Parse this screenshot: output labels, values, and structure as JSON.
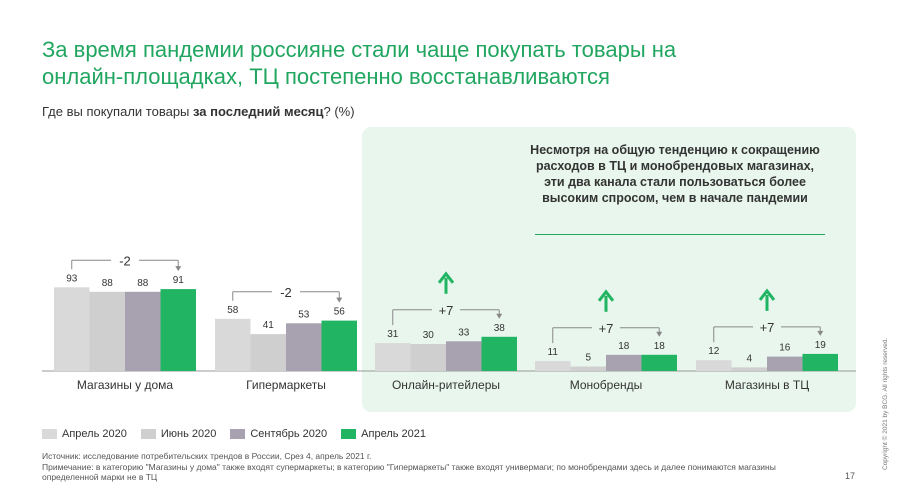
{
  "title": "За время пандемии россияне стали чаще покупать товары на онлайн-площадках, ТЦ постепенно восстанавливаются",
  "subtitle": {
    "prefix": "Где вы покупали товары ",
    "bold": "за последний месяц",
    "suffix": "? (%)"
  },
  "callout": "Несмотря на общую тенденцию к сокращению расходов в ТЦ и монобрендовых магазинах, эти два канала стали пользоваться более высоким спросом, чем в начале пандемии",
  "chart_data": {
    "type": "bar",
    "title": "Где вы покупали товары за последний месяц? (%)",
    "categories": [
      "Магазины у дома",
      "Гипермаркеты",
      "Онлайн-ритейлеры",
      "Монобренды",
      "Магазины в ТЦ"
    ],
    "series": [
      {
        "name": "Апрель 2020",
        "color": "#d9d9d9",
        "values": [
          93,
          58,
          31,
          11,
          12
        ]
      },
      {
        "name": "Июнь 2020",
        "color": "#cfcfcf",
        "values": [
          88,
          41,
          30,
          5,
          4
        ]
      },
      {
        "name": "Сентябрь 2020",
        "color": "#a8a2b0",
        "values": [
          88,
          53,
          33,
          18,
          16
        ]
      },
      {
        "name": "Апрель 2021",
        "color": "#21b563",
        "values": [
          91,
          56,
          38,
          18,
          19
        ]
      }
    ],
    "changes": [
      "-2",
      "-2",
      "+7",
      "+7",
      "+7"
    ],
    "up_arrows": [
      false,
      false,
      true,
      true,
      true
    ],
    "ylim": [
      0,
      100
    ],
    "xlabel": "",
    "ylabel": ""
  },
  "legend": [
    "Апрель 2020",
    "Июнь 2020",
    "Сентябрь 2020",
    "Апрель 2021"
  ],
  "colors": {
    "accent": "#21a660",
    "arrow": "#21b563",
    "bracket": "#888888"
  },
  "footer": {
    "source": "Источник: исследование потребительских трендов в России, Срез 4, апрель 2021 г.",
    "note": "Примечание: в категорию \"Магазины у дома\" также входят супермаркеты; в категорию \"Гипермаркеты\" также входят универмаги; по монобрендами здесь и далее понимаются магазины определенной марки не в ТЦ"
  },
  "page_number": "17",
  "copyright": "Copyright © 2021 by BCG. All rights reserved."
}
